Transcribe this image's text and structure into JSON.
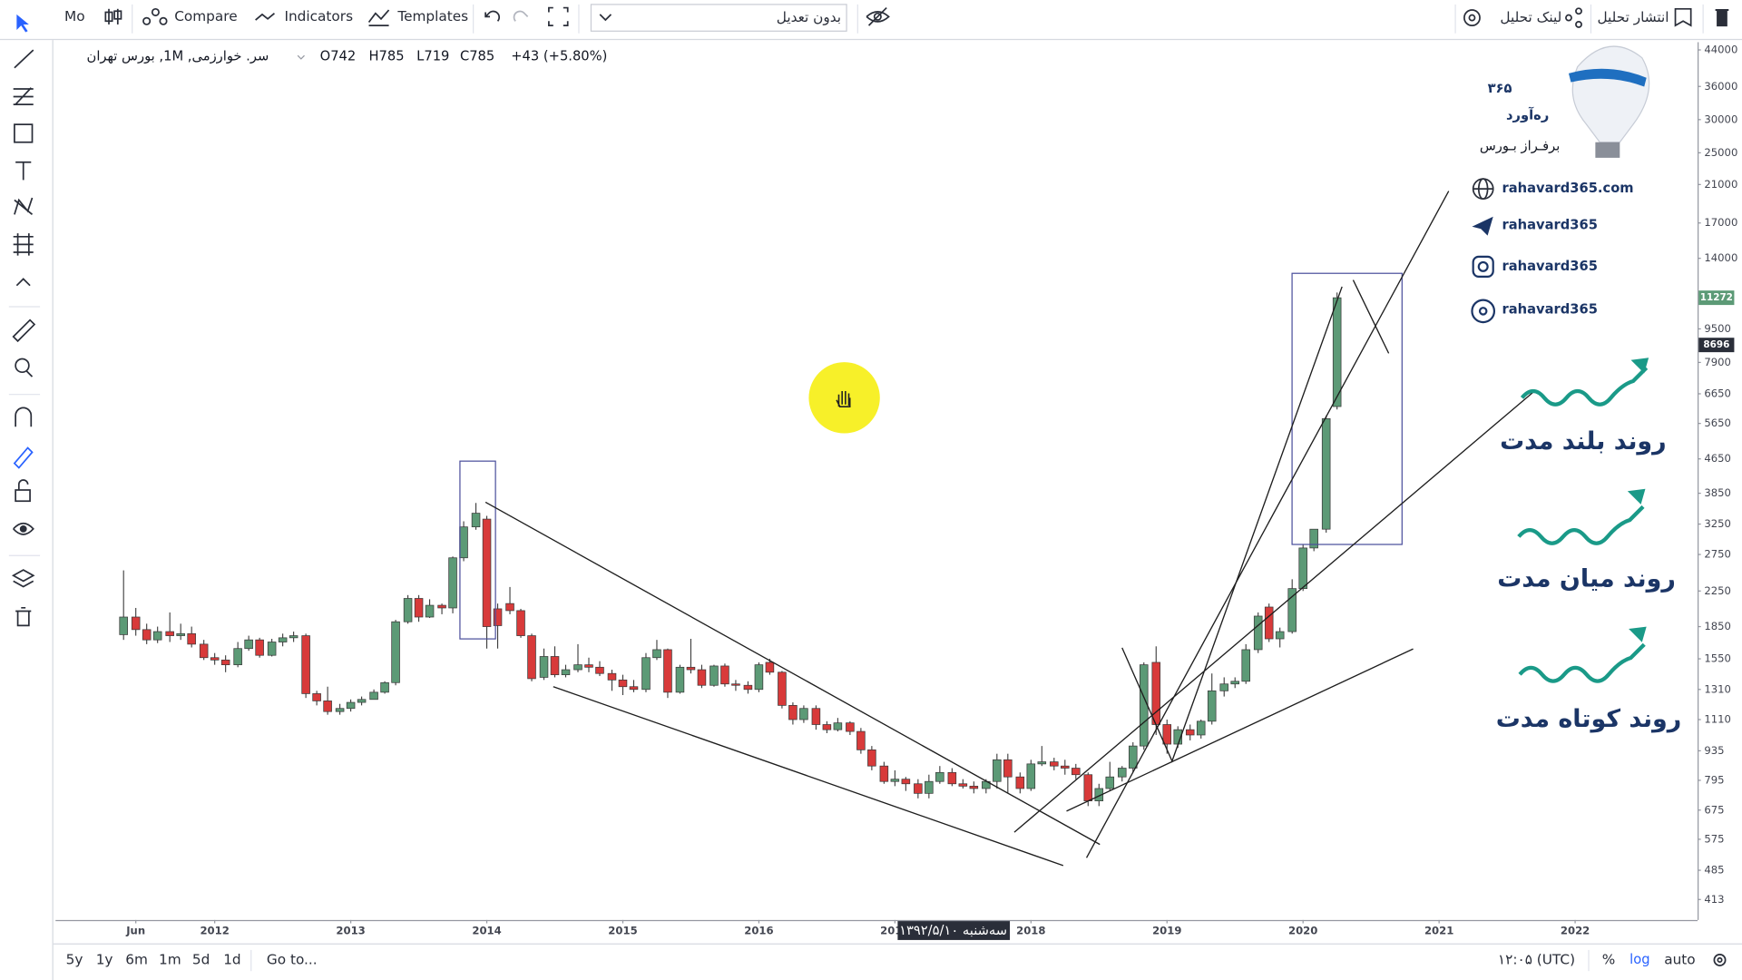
{
  "toolbar": {
    "symbol_short": "Mo",
    "compare": "Compare",
    "indicators": "Indicators",
    "templates": "Templates",
    "adjustment": "بدون تعدیل",
    "publish": "انتشار تحلیل",
    "share_link": "لینک تحلیل"
  },
  "legend": {
    "symbol": "سر. خوارزمی, 1M, بورس تهران",
    "open": "O742",
    "high": "H785",
    "low": "L719",
    "close": "C785",
    "change": "+43 (+5.80%)"
  },
  "crosshair_date": "سه‌شنبه ۱۳۹۲/۵/۱۰",
  "chart_data": {
    "type": "candlestick",
    "log_scale": true,
    "grid": false,
    "up_color": "#5c9a76",
    "down_color": "#d83a3a",
    "x": [
      2011.33,
      2011.42,
      2011.5,
      2011.58,
      2011.67,
      2011.75,
      2011.83,
      2011.92,
      2012,
      2012.08,
      2012.17,
      2012.25,
      2012.33,
      2012.42,
      2012.5,
      2012.58,
      2012.67,
      2012.75,
      2012.83,
      2012.92,
      2013,
      2013.08,
      2013.17,
      2013.25,
      2013.33,
      2013.42,
      2013.5,
      2013.58,
      2013.67,
      2013.75,
      2013.83,
      2013.92,
      2014,
      2014.08,
      2014.17,
      2014.25,
      2014.33,
      2014.42,
      2014.5,
      2014.58,
      2014.67,
      2014.75,
      2014.83,
      2014.92,
      2015,
      2015.08,
      2015.17,
      2015.25,
      2015.33,
      2015.42,
      2015.5,
      2015.58,
      2015.67,
      2015.75,
      2015.83,
      2015.92,
      2016,
      2016.08,
      2016.17,
      2016.25,
      2016.33,
      2016.42,
      2016.5,
      2016.58,
      2016.67,
      2016.75,
      2016.83,
      2016.92,
      2017,
      2017.08,
      2017.17,
      2017.25,
      2017.33,
      2017.42,
      2017.5,
      2017.58,
      2017.67,
      2017.75,
      2017.83,
      2017.92,
      2018,
      2018.08,
      2018.17,
      2018.25,
      2018.33,
      2018.42,
      2018.5,
      2018.58,
      2018.67,
      2018.75,
      2018.83,
      2018.92,
      2019,
      2019.08,
      2019.17,
      2019.25,
      2019.33,
      2019.42,
      2019.5,
      2019.58,
      2019.67,
      2019.75,
      2019.83,
      2019.92,
      2020,
      2020.08,
      2020.17,
      2020.25
    ],
    "open": [
      1770,
      1950,
      1820,
      1720,
      1800,
      1760,
      1780,
      1680,
      1560,
      1540,
      1500,
      1640,
      1720,
      1580,
      1700,
      1740,
      1760,
      1280,
      1230,
      1160,
      1180,
      1220,
      1240,
      1290,
      1360,
      1900,
      2160,
      1950,
      2080,
      2050,
      2700,
      3200,
      3340,
      2040,
      2100,
      2020,
      1760,
      1400,
      1570,
      1420,
      1460,
      1500,
      1480,
      1430,
      1380,
      1330,
      1310,
      1560,
      1630,
      1290,
      1480,
      1460,
      1340,
      1490,
      1350,
      1340,
      1310,
      1520,
      1440,
      1200,
      1110,
      1180,
      1080,
      1050,
      1090,
      1040,
      940,
      860,
      790,
      800,
      780,
      740,
      790,
      830,
      780,
      770,
      760,
      790,
      890,
      810,
      760,
      870,
      880,
      860,
      850,
      820,
      710,
      760,
      810,
      850,
      960,
      1520,
      1080,
      970,
      1050,
      1020,
      1100,
      1300,
      1350,
      1370,
      1630,
      2060,
      1730,
      1800,
      2280,
      2850,
      3160,
      6200
    ],
    "high": [
      2520,
      2050,
      1880,
      1850,
      2000,
      1880,
      1850,
      1720,
      1600,
      1580,
      1700,
      1760,
      1740,
      1730,
      1780,
      1800,
      1780,
      1300,
      1330,
      1210,
      1240,
      1260,
      1310,
      1370,
      1920,
      2200,
      2200,
      2150,
      2100,
      2720,
      3300,
      3650,
      3400,
      2100,
      2300,
      2040,
      1780,
      1640,
      1660,
      1500,
      1680,
      1560,
      1530,
      1460,
      1420,
      1380,
      1600,
      1720,
      1640,
      1500,
      1730,
      1500,
      1500,
      1510,
      1380,
      1370,
      1520,
      1550,
      1450,
      1220,
      1200,
      1200,
      1100,
      1120,
      1100,
      1060,
      960,
      880,
      840,
      810,
      800,
      820,
      860,
      850,
      800,
      790,
      800,
      920,
      920,
      830,
      890,
      960,
      900,
      890,
      870,
      830,
      780,
      880,
      860,
      980,
      1520,
      1660,
      1110,
      1070,
      1080,
      1110,
      1430,
      1400,
      1400,
      1680,
      2000,
      2100,
      1840,
      2400,
      2900,
      3150,
      5900,
      11600
    ],
    "low": [
      1720,
      1760,
      1680,
      1690,
      1700,
      1720,
      1650,
      1540,
      1500,
      1440,
      1480,
      1620,
      1560,
      1570,
      1660,
      1700,
      1250,
      1200,
      1140,
      1140,
      1160,
      1200,
      1240,
      1280,
      1340,
      1880,
      1900,
      1940,
      1980,
      1990,
      2650,
      3150,
      1640,
      1640,
      1980,
      1740,
      1370,
      1380,
      1400,
      1400,
      1440,
      1440,
      1410,
      1300,
      1270,
      1290,
      1290,
      1540,
      1250,
      1280,
      1430,
      1320,
      1330,
      1330,
      1300,
      1280,
      1290,
      1420,
      1180,
      1080,
      1090,
      1050,
      1030,
      1040,
      1020,
      920,
      840,
      780,
      770,
      750,
      720,
      720,
      780,
      770,
      760,
      740,
      740,
      760,
      740,
      740,
      750,
      860,
      840,
      820,
      800,
      690,
      690,
      750,
      790,
      830,
      940,
      1020,
      920,
      950,
      990,
      1000,
      1080,
      1260,
      1320,
      1350,
      1600,
      1700,
      1650,
      1780,
      2250,
      2800,
      3100,
      6100
    ],
    "close": [
      1950,
      1820,
      1720,
      1800,
      1760,
      1780,
      1680,
      1560,
      1540,
      1500,
      1640,
      1720,
      1580,
      1700,
      1740,
      1760,
      1280,
      1230,
      1160,
      1180,
      1220,
      1240,
      1290,
      1360,
      1900,
      2160,
      1950,
      2080,
      2050,
      2700,
      3200,
      3450,
      1850,
      1860,
      2020,
      1760,
      1390,
      1570,
      1420,
      1460,
      1500,
      1480,
      1430,
      1380,
      1330,
      1310,
      1560,
      1630,
      1290,
      1480,
      1460,
      1340,
      1490,
      1350,
      1340,
      1310,
      1500,
      1440,
      1200,
      1110,
      1180,
      1080,
      1050,
      1090,
      1040,
      940,
      860,
      790,
      800,
      780,
      740,
      790,
      830,
      780,
      770,
      760,
      790,
      890,
      810,
      760,
      870,
      880,
      860,
      850,
      820,
      710,
      760,
      810,
      850,
      960,
      1500,
      1080,
      970,
      1050,
      1020,
      1100,
      1300,
      1350,
      1370,
      1630,
      1960,
      1730,
      1800,
      2280,
      2850,
      3160,
      5800,
      11272
    ],
    "xlim": [
      2010.83,
      2022.9
    ],
    "xticks": [
      {
        "value": 2011.42,
        "label": "Jun"
      },
      2012,
      2013,
      2014,
      2015,
      2016,
      2017,
      2018,
      2019,
      2020,
      2021,
      2022
    ],
    "ylim": [
      369,
      45900
    ],
    "yticks": [
      44000,
      36000,
      30000,
      25000,
      21000,
      17000,
      14000,
      9500,
      7900,
      6650,
      5650,
      4650,
      3850,
      3250,
      2750,
      2250,
      1850,
      1550,
      1310,
      1110,
      935,
      795,
      675,
      575,
      485,
      413
    ],
    "price_badges": [
      {
        "value": 11272,
        "color": "#5c9a76"
      },
      {
        "value": 8696,
        "color": "#2a2e39"
      }
    ]
  },
  "branding": {
    "number": "۳۶۵",
    "name": "ره‌آورد",
    "tagline": "برفـراز بـورس",
    "links": [
      "rahavard365.com",
      "rahavard365",
      "rahavard365",
      "rahavard365"
    ]
  },
  "trend_labels": [
    "روند بلند مدت",
    "روند میان مدت",
    "روند کوتاه مدت"
  ],
  "bottom_bar": {
    "ranges": [
      "5y",
      "1y",
      "6m",
      "1m",
      "5d",
      "1d"
    ],
    "goto": "Go to...",
    "time": "۱۲:۰۵ (UTC)",
    "percent": "%",
    "log": "log",
    "auto": "auto"
  }
}
